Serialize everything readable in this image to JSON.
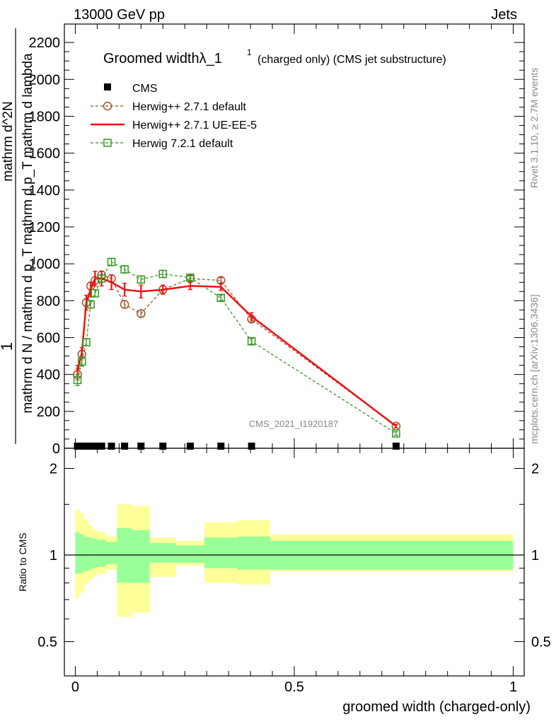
{
  "header": {
    "left": "13000 GeV pp",
    "right": "Jets"
  },
  "side_labels": {
    "rivet": "Rivet 3.1.10, ≥ 2.7M events",
    "mcplots": "mcplots.cern.ch [arXiv:1306.3436]"
  },
  "watermark": "CMS_2021_I1920187",
  "chart_data": [
    {
      "type": "line",
      "title_main": "Groomed widthλ_1",
      "title_sup": "1",
      "title_rest": "(charged only) (CMS jet substructure)",
      "ylabel_numerator": "1",
      "ylabel_denominator": "mathrm d N / mathrm d p_T mathrm d p_T mathrm d lambda",
      "ylabel_top": "mathrm d^2N",
      "ylim": [
        0,
        2300
      ],
      "yticks": [
        0,
        200,
        400,
        600,
        800,
        1000,
        1200,
        1400,
        1600,
        1800,
        2000,
        2200
      ],
      "xlim": [
        -0.025,
        1.025
      ],
      "legend_position": "top-left",
      "series": [
        {
          "name": "CMS",
          "color": "#000000",
          "marker": "square-filled",
          "x": [
            0.005,
            0.015,
            0.025,
            0.035,
            0.045,
            0.06,
            0.0825,
            0.1125,
            0.15,
            0.2,
            0.2625,
            0.3325,
            0.4025,
            0.7325
          ],
          "y": [
            0,
            0,
            0,
            0,
            0,
            0,
            0,
            0,
            0,
            0,
            0,
            0,
            0,
            0
          ]
        },
        {
          "name": "Herwig++ 2.7.1 default",
          "color": "#a0522d",
          "marker": "circle-open",
          "dashed": true,
          "x": [
            0.005,
            0.015,
            0.025,
            0.035,
            0.045,
            0.06,
            0.0825,
            0.1125,
            0.15,
            0.2,
            0.2625,
            0.3325,
            0.4025,
            0.7325
          ],
          "y": [
            400,
            510,
            790,
            880,
            910,
            940,
            920,
            780,
            730,
            860,
            920,
            910,
            700,
            120
          ],
          "err": [
            30,
            20,
            20,
            20,
            20,
            20,
            20,
            20,
            20,
            20,
            15,
            15,
            15,
            10
          ]
        },
        {
          "name": "Herwig++ 2.7.1 UE-EE-5",
          "color": "#ee1111",
          "marker": "none",
          "dashed": false,
          "x": [
            0.005,
            0.015,
            0.025,
            0.035,
            0.045,
            0.06,
            0.0825,
            0.1125,
            0.15,
            0.2,
            0.2625,
            0.3325,
            0.4025,
            0.7325
          ],
          "y": [
            420,
            520,
            790,
            860,
            920,
            920,
            900,
            860,
            850,
            860,
            880,
            875,
            715,
            120
          ],
          "err": [
            30,
            25,
            40,
            40,
            40,
            40,
            40,
            35,
            35,
            25,
            20,
            20,
            20,
            10
          ]
        },
        {
          "name": "Herwig 7.2.1 default",
          "color": "#339922",
          "marker": "square-open",
          "dashed": true,
          "x": [
            0.005,
            0.015,
            0.025,
            0.035,
            0.045,
            0.06,
            0.0825,
            0.1125,
            0.15,
            0.2,
            0.2625,
            0.3325,
            0.4025,
            0.7325
          ],
          "y": [
            370,
            470,
            575,
            780,
            840,
            920,
            1010,
            970,
            915,
            945,
            925,
            815,
            580,
            80
          ],
          "err": [
            30,
            25,
            20,
            20,
            20,
            20,
            20,
            20,
            20,
            20,
            15,
            15,
            15,
            10
          ]
        }
      ]
    },
    {
      "type": "area",
      "ylabel": "Ratio to CMS",
      "xlabel": "groomed width (charged-only)",
      "ylim": [
        0.38,
        2.35
      ],
      "ytick_labels": [
        "0.5",
        "1",
        "2"
      ],
      "ytick_values": [
        0.5,
        1,
        2
      ],
      "xtick_labels": [
        "0",
        "0.5",
        "1"
      ],
      "xtick_values": [
        0,
        0.5,
        1
      ],
      "xlim": [
        -0.025,
        1.025
      ],
      "band_colors": {
        "inner": "#99ff99",
        "outer": "#ffff99"
      },
      "bins": {
        "edges": [
          0.0,
          0.01,
          0.02,
          0.03,
          0.04,
          0.05,
          0.07,
          0.095,
          0.13,
          0.17,
          0.23,
          0.295,
          0.37,
          0.445,
          1.0
        ],
        "inner_low": [
          0.86,
          0.87,
          0.88,
          0.89,
          0.9,
          0.91,
          0.93,
          0.8,
          0.8,
          0.94,
          0.94,
          0.9,
          0.89,
          0.89
        ],
        "inner_high": [
          1.2,
          1.18,
          1.16,
          1.15,
          1.14,
          1.13,
          1.11,
          1.24,
          1.22,
          1.1,
          1.08,
          1.15,
          1.16,
          1.12
        ],
        "outer_low": [
          0.71,
          0.74,
          0.79,
          0.82,
          0.84,
          0.86,
          0.89,
          0.61,
          0.63,
          0.84,
          0.92,
          0.8,
          0.79,
          0.88
        ],
        "outer_high": [
          1.44,
          1.4,
          1.33,
          1.27,
          1.23,
          1.2,
          1.16,
          1.5,
          1.48,
          1.15,
          1.12,
          1.3,
          1.32,
          1.18
        ]
      }
    }
  ]
}
